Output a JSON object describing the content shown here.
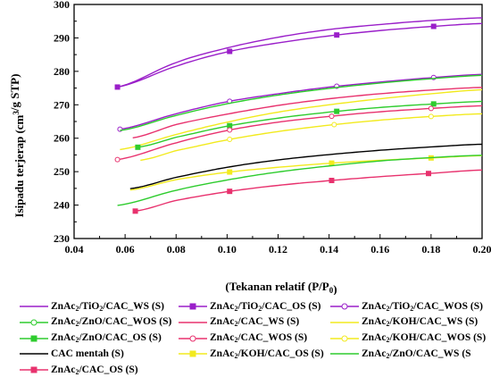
{
  "chart_data": {
    "type": "line",
    "xlabel": "(Tekanan relatif (P/P0)",
    "ylabel": "Isipadu terjerap (cm3/g STP)",
    "xlim": [
      0.04,
      0.2
    ],
    "ylim": [
      230,
      300
    ],
    "xticks": [
      "0.04",
      "0.06",
      "0.08",
      "0.10",
      "0.12",
      "0.14",
      "0.16",
      "0.18",
      "0.20"
    ],
    "yticks": [
      "230",
      "240",
      "250",
      "260",
      "270",
      "280",
      "290",
      "300"
    ],
    "grid": false,
    "legend_position": "bottom",
    "series": [
      {
        "name": "ZnAc2/TiO2/CAC_WS (S)",
        "color": "#9a1fc9",
        "marker": "none",
        "x": [
          0.057,
          0.08,
          0.1,
          0.12,
          0.14,
          0.16,
          0.18,
          0.2
        ],
        "y": [
          275.3,
          282.6,
          287.0,
          290.2,
          292.5,
          294.0,
          295.2,
          296.0
        ],
        "markers_x": []
      },
      {
        "name": "ZnAc2/TiO2/CAC_OS (S)",
        "color": "#9a1fc9",
        "marker": "square-filled",
        "x": [
          0.057,
          0.08,
          0.1,
          0.12,
          0.14,
          0.16,
          0.18,
          0.2
        ],
        "y": [
          275.3,
          281.5,
          285.8,
          288.5,
          290.6,
          292.2,
          293.4,
          294.3
        ],
        "markers_x": [
          0.057,
          0.101,
          0.143,
          0.181
        ]
      },
      {
        "name": "ZnAc2/TiO2/CAC_WOS (S)",
        "color": "#9a1fc9",
        "marker": "circle-open",
        "x": [
          0.058,
          0.08,
          0.1,
          0.12,
          0.14,
          0.16,
          0.18,
          0.2
        ],
        "y": [
          262.7,
          267.3,
          270.9,
          273.3,
          275.3,
          276.8,
          278.1,
          279.1
        ],
        "markers_x": [
          0.058,
          0.101,
          0.143,
          0.181
        ]
      },
      {
        "name": "ZnAc2/ZnO/CAC_WOS (S)",
        "color": "#2ecc2e",
        "marker": "circle-open",
        "x": [
          0.058,
          0.08,
          0.1,
          0.12,
          0.14,
          0.16,
          0.18,
          0.2
        ],
        "y": [
          262.3,
          266.8,
          270.3,
          272.9,
          274.9,
          276.5,
          277.8,
          278.8
        ],
        "markers_x": []
      },
      {
        "name": "ZnAc2/CAC_WS (S)",
        "color": "#e8326e",
        "marker": "none",
        "x": [
          0.063,
          0.08,
          0.1,
          0.12,
          0.14,
          0.16,
          0.18,
          0.2
        ],
        "y": [
          260.1,
          264.1,
          267.2,
          269.8,
          271.8,
          273.3,
          274.4,
          275.2
        ],
        "markers_x": []
      },
      {
        "name": "ZnAc2/KOH/CAC_WS (S)",
        "color": "#f2ea1e",
        "marker": "none",
        "x": [
          0.058,
          0.08,
          0.1,
          0.12,
          0.14,
          0.16,
          0.18,
          0.2
        ],
        "y": [
          256.6,
          261.1,
          264.8,
          267.8,
          270.0,
          271.8,
          273.3,
          274.5
        ],
        "markers_x": []
      },
      {
        "name": "ZnAc2/ZnO/CAC_OS (S)",
        "color": "#2ecc2e",
        "marker": "square-filled",
        "x": [
          0.065,
          0.08,
          0.1,
          0.12,
          0.14,
          0.16,
          0.18,
          0.2
        ],
        "y": [
          257.3,
          260.3,
          263.6,
          266.0,
          267.8,
          269.2,
          270.2,
          271.0
        ],
        "markers_x": [
          0.065,
          0.101,
          0.143,
          0.181
        ]
      },
      {
        "name": "ZnAc2/CAC_WOS (S)",
        "color": "#e8326e",
        "marker": "circle-open",
        "x": [
          0.057,
          0.08,
          0.1,
          0.12,
          0.14,
          0.16,
          0.18,
          0.2
        ],
        "y": [
          253.6,
          258.6,
          262.3,
          264.8,
          266.5,
          267.9,
          268.9,
          269.7
        ],
        "markers_x": [
          0.057,
          0.101,
          0.141,
          0.18
        ]
      },
      {
        "name": "ZnAc2/KOH/CAC_WOS (S)",
        "color": "#f2ea1e",
        "marker": "circle-open",
        "x": [
          0.066,
          0.08,
          0.1,
          0.12,
          0.14,
          0.16,
          0.18,
          0.2
        ],
        "y": [
          253.4,
          256.3,
          259.5,
          262.0,
          263.9,
          265.4,
          266.5,
          267.3
        ],
        "markers_x": [
          0.101,
          0.142,
          0.18
        ]
      },
      {
        "name": "CAC mentah (S)",
        "color": "#000000",
        "marker": "none",
        "x": [
          0.062,
          0.08,
          0.1,
          0.12,
          0.14,
          0.16,
          0.18,
          0.2
        ],
        "y": [
          244.9,
          248.3,
          251.3,
          253.5,
          255.1,
          256.4,
          257.4,
          258.2
        ],
        "markers_x": []
      },
      {
        "name": "ZnAc2/KOH/CAC_OS (S)",
        "color": "#f2ea1e",
        "marker": "square-filled",
        "x": [
          0.062,
          0.08,
          0.1,
          0.12,
          0.14,
          0.16,
          0.18,
          0.2
        ],
        "y": [
          244.5,
          247.6,
          249.8,
          251.3,
          252.5,
          253.4,
          254.1,
          254.8
        ],
        "markers_x": [
          0.101,
          0.141,
          0.18
        ]
      },
      {
        "name": "ZnAc2/ZnO/CAC_WS (S",
        "color": "#2ecc2e",
        "marker": "none",
        "x": [
          0.057,
          0.08,
          0.1,
          0.12,
          0.14,
          0.16,
          0.18,
          0.2
        ],
        "y": [
          239.9,
          244.4,
          247.5,
          249.9,
          251.7,
          253.2,
          254.2,
          254.9
        ],
        "markers_x": []
      },
      {
        "name": "ZnAc2/CAC_OS (S)",
        "color": "#e8326e",
        "marker": "square-filled",
        "x": [
          0.064,
          0.08,
          0.1,
          0.12,
          0.14,
          0.16,
          0.18,
          0.2
        ],
        "y": [
          238.2,
          241.4,
          244.0,
          245.9,
          247.3,
          248.5,
          249.5,
          250.5
        ],
        "markers_x": [
          0.064,
          0.101,
          0.141,
          0.179
        ]
      }
    ]
  }
}
